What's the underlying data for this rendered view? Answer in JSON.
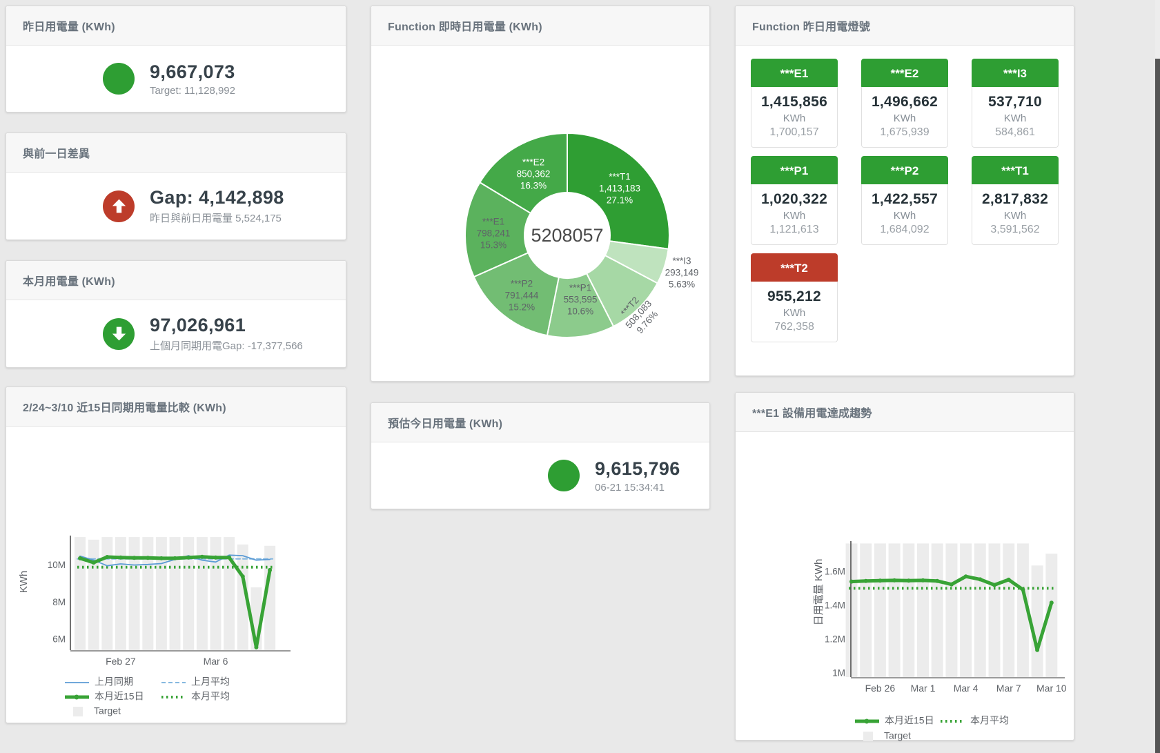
{
  "colors": {
    "green": "#2e9e33",
    "red": "#bd3c2a",
    "title_text": "#68727c",
    "value_text": "#37424a",
    "subtitle_text": "#8a9097",
    "bar_gray": "#ececec",
    "blue": "#5b9bd5",
    "blue_light": "#85b8e0",
    "green_line": "#38a336"
  },
  "panels": {
    "yesterday": {
      "title": "昨日用電量 (KWh)",
      "value": "9,667,073",
      "subtitle": "Target: 11,128,992",
      "status": "green"
    },
    "day_gap": {
      "title": "與前一日差異",
      "value": "Gap: 4,142,898",
      "subtitle": "昨日與前日用電量 5,524,175",
      "status": "red",
      "direction": "up"
    },
    "month": {
      "title": "本月用電量 (KWh)",
      "value": "97,026,961",
      "subtitle": "上個月同期用電Gap: -17,377,566",
      "status": "green",
      "direction": "down"
    },
    "compare": {
      "title": "2/24~3/10 近15日同期用電量比較 (KWh)"
    },
    "realtime": {
      "title": "Function 即時日用電量 (KWh)"
    },
    "forecast": {
      "title": "預估今日用電量 (KWh)",
      "value": "9,615,796",
      "subtitle": "06-21 15:34:41",
      "status": "green"
    },
    "lights": {
      "title": "Function 昨日用電燈號",
      "cards": [
        {
          "label": "***E1",
          "value": "1,415,856",
          "unit": "KWh",
          "target": "1,700,157",
          "status": "green"
        },
        {
          "label": "***E2",
          "value": "1,496,662",
          "unit": "KWh",
          "target": "1,675,939",
          "status": "green"
        },
        {
          "label": "***I3",
          "value": "537,710",
          "unit": "KWh",
          "target": "584,861",
          "status": "green"
        },
        {
          "label": "***P1",
          "value": "1,020,322",
          "unit": "KWh",
          "target": "1,121,613",
          "status": "green"
        },
        {
          "label": "***P2",
          "value": "1,422,557",
          "unit": "KWh",
          "target": "1,684,092",
          "status": "green"
        },
        {
          "label": "***T1",
          "value": "2,817,832",
          "unit": "KWh",
          "target": "3,591,562",
          "status": "green"
        },
        {
          "label": "***T2",
          "value": "955,212",
          "unit": "KWh",
          "target": "762,358",
          "status": "red"
        }
      ]
    },
    "trend": {
      "title": "***E1 設備用電達成趨勢"
    }
  },
  "chart_data": [
    {
      "type": "pie",
      "title": "Function 即時日用電量 (KWh)",
      "center_total": "5208057",
      "slices": [
        {
          "name": "***T1",
          "value": 1413183,
          "pct": "27.1%",
          "color": "#2f9e33",
          "label_color": "#ffffff"
        },
        {
          "name": "***I3",
          "value": 293149,
          "pct": "5.63%",
          "color": "#bfe3be",
          "label_color": "#5f6368"
        },
        {
          "name": "***T2",
          "value": 508083,
          "pct": "9.76%",
          "color": "#a6d8a5",
          "label_color": "#5f6368"
        },
        {
          "name": "***P1",
          "value": 553595,
          "pct": "10.6%",
          "color": "#8ccb8c",
          "label_color": "#5f6368"
        },
        {
          "name": "***P2",
          "value": 791444,
          "pct": "15.2%",
          "color": "#72bd73",
          "label_color": "#5f6368"
        },
        {
          "name": "***E1",
          "value": 798241,
          "pct": "15.3%",
          "color": "#5bb25d",
          "label_color": "#5f6368"
        },
        {
          "name": "***E2",
          "value": 850362,
          "pct": "16.3%",
          "color": "#44a948",
          "label_color": "#ffffff"
        }
      ]
    },
    {
      "type": "line",
      "title": "2/24~3/10 近15日同期用電量比較 (KWh)",
      "ylabel": "KWh",
      "ylim": [
        5.45,
        11.9
      ],
      "unit": "M",
      "x_count": 15,
      "yticks": [
        {
          "v": 6,
          "label": "6M"
        },
        {
          "v": 8,
          "label": "8M"
        },
        {
          "v": 10,
          "label": "10M"
        }
      ],
      "xticks": [
        {
          "i": 3,
          "label": "Feb 27"
        },
        {
          "i": 10,
          "label": "Mar 6"
        }
      ],
      "series": [
        {
          "name": "Target",
          "kind": "bar",
          "color": "#ececec",
          "values": [
            11.52,
            11.38,
            11.52,
            11.52,
            11.52,
            11.52,
            11.52,
            11.52,
            11.52,
            11.52,
            11.52,
            11.52,
            11.12,
            8.82,
            11.05
          ]
        },
        {
          "name": "上月平均",
          "kind": "line",
          "style": "dashed",
          "color": "#85b8e0",
          "width": 2,
          "value": 10.35
        },
        {
          "name": "本月平均",
          "kind": "line",
          "style": "dotted",
          "color": "#38a336",
          "width": 4,
          "value": 9.9
        },
        {
          "name": "上月同期",
          "kind": "line",
          "style": "solid",
          "color": "#5b9bd5",
          "width": 1.8,
          "values": [
            10.5,
            10.28,
            9.98,
            10.08,
            10.02,
            10.05,
            10.1,
            10.32,
            10.52,
            10.28,
            10.18,
            10.55,
            10.52,
            10.28,
            10.32
          ]
        },
        {
          "name": "本月近15日",
          "kind": "line",
          "style": "solid",
          "color": "#38a336",
          "width": 5,
          "markers": true,
          "values": [
            10.38,
            10.15,
            10.45,
            10.42,
            10.4,
            10.4,
            10.38,
            10.38,
            10.42,
            10.46,
            10.42,
            10.42,
            9.4,
            5.6,
            9.75
          ]
        }
      ],
      "legend": [
        [
          "上月同期",
          "上月平均"
        ],
        [
          "本月近15日",
          "本月平均"
        ],
        [
          "Target"
        ]
      ]
    },
    {
      "type": "line",
      "title": "***E1 設備用電達成趨勢",
      "ylabel": "日用電量 KWh",
      "ylim": [
        0.98,
        1.79
      ],
      "unit": "M",
      "x_count": 15,
      "yticks": [
        {
          "v": 1,
          "label": "1M"
        },
        {
          "v": 1.2,
          "label": "1.2M"
        },
        {
          "v": 1.4,
          "label": "1.4M"
        },
        {
          "v": 1.6,
          "label": "1.6M"
        }
      ],
      "xticks": [
        {
          "i": 2,
          "label": "Feb 26"
        },
        {
          "i": 5,
          "label": "Mar 1"
        },
        {
          "i": 8,
          "label": "Mar 4"
        },
        {
          "i": 11,
          "label": "Mar 7"
        },
        {
          "i": 14,
          "label": "Mar 10"
        }
      ],
      "series": [
        {
          "name": "Target",
          "kind": "bar",
          "color": "#ececec",
          "values": [
            1.77,
            1.77,
            1.77,
            1.77,
            1.77,
            1.77,
            1.77,
            1.77,
            1.77,
            1.77,
            1.77,
            1.77,
            1.77,
            1.64,
            1.71
          ]
        },
        {
          "name": "本月平均",
          "kind": "line",
          "style": "dotted",
          "color": "#38a336",
          "width": 4,
          "value": 1.505
        },
        {
          "name": "本月近15日",
          "kind": "line",
          "style": "solid",
          "color": "#38a336",
          "width": 5,
          "markers": true,
          "values": [
            1.545,
            1.548,
            1.55,
            1.552,
            1.55,
            1.552,
            1.548,
            1.528,
            1.575,
            1.558,
            1.525,
            1.556,
            1.497,
            1.14,
            1.42
          ]
        }
      ],
      "legend": [
        [
          "本月近15日",
          "本月平均"
        ],
        [
          "Target"
        ]
      ]
    }
  ]
}
